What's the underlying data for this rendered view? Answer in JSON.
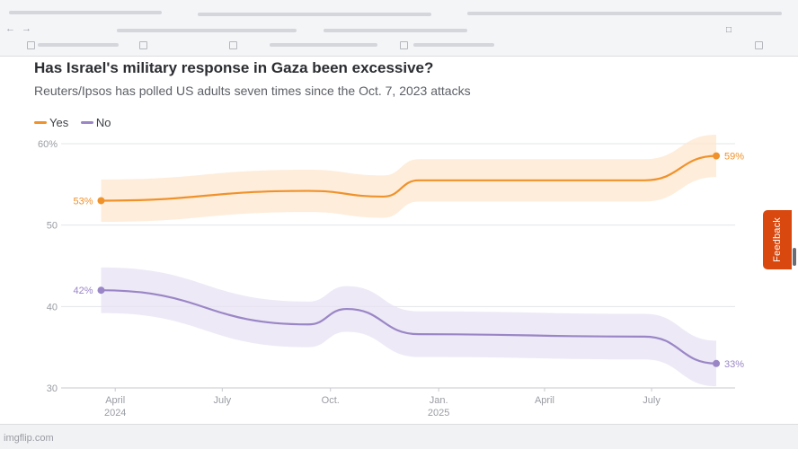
{
  "watermark": "imgflip.com",
  "feedback_label": "Feedback",
  "chart_data": {
    "type": "line",
    "title": "Has Israel's military response in Gaza been excessive?",
    "subtitle": "Reuters/Ipsos has polled US adults seven times since the Oct. 7, 2023 attacks",
    "xlabel": "",
    "ylabel": "",
    "ylim": [
      30,
      60
    ],
    "xlim": [
      "2024-02-15",
      "2025-09-10"
    ],
    "grid": true,
    "y_ticks": [
      {
        "value": 60,
        "label": "60%"
      },
      {
        "value": 50,
        "label": "50"
      },
      {
        "value": 40,
        "label": "40"
      },
      {
        "value": 30,
        "label": "30"
      }
    ],
    "x_ticks": [
      {
        "date": "2024-04-01",
        "label": "April",
        "sublabel": "2024"
      },
      {
        "date": "2024-07-01",
        "label": "July",
        "sublabel": ""
      },
      {
        "date": "2024-10-01",
        "label": "Oct.",
        "sublabel": ""
      },
      {
        "date": "2025-01-01",
        "label": "Jan.",
        "sublabel": "2025"
      },
      {
        "date": "2025-04-01",
        "label": "April",
        "sublabel": ""
      },
      {
        "date": "2025-07-01",
        "label": "July",
        "sublabel": ""
      }
    ],
    "series": [
      {
        "name": "Yes",
        "color": "#f0922b",
        "band_color": "#fde7cf",
        "start_label": "53%",
        "end_label": "59%",
        "points": [
          {
            "date": "2024-03-20",
            "value": 53
          },
          {
            "date": "2024-09-12",
            "value": 54.2
          },
          {
            "date": "2024-11-15",
            "value": 53.5
          },
          {
            "date": "2024-12-15",
            "value": 55.5
          },
          {
            "date": "2025-06-25",
            "value": 55.5
          },
          {
            "date": "2025-08-25",
            "value": 58.5
          }
        ],
        "band_width": 2.6
      },
      {
        "name": "No",
        "color": "#9a86c6",
        "band_color": "#e7e2f3",
        "start_label": "42%",
        "end_label": "33%",
        "points": [
          {
            "date": "2024-03-20",
            "value": 42
          },
          {
            "date": "2024-09-12",
            "value": 37.8
          },
          {
            "date": "2024-10-15",
            "value": 39.7
          },
          {
            "date": "2024-12-15",
            "value": 36.6
          },
          {
            "date": "2025-06-25",
            "value": 36.3
          },
          {
            "date": "2025-08-25",
            "value": 33
          }
        ],
        "band_width": 2.8
      }
    ],
    "legend_position": "top-left"
  }
}
